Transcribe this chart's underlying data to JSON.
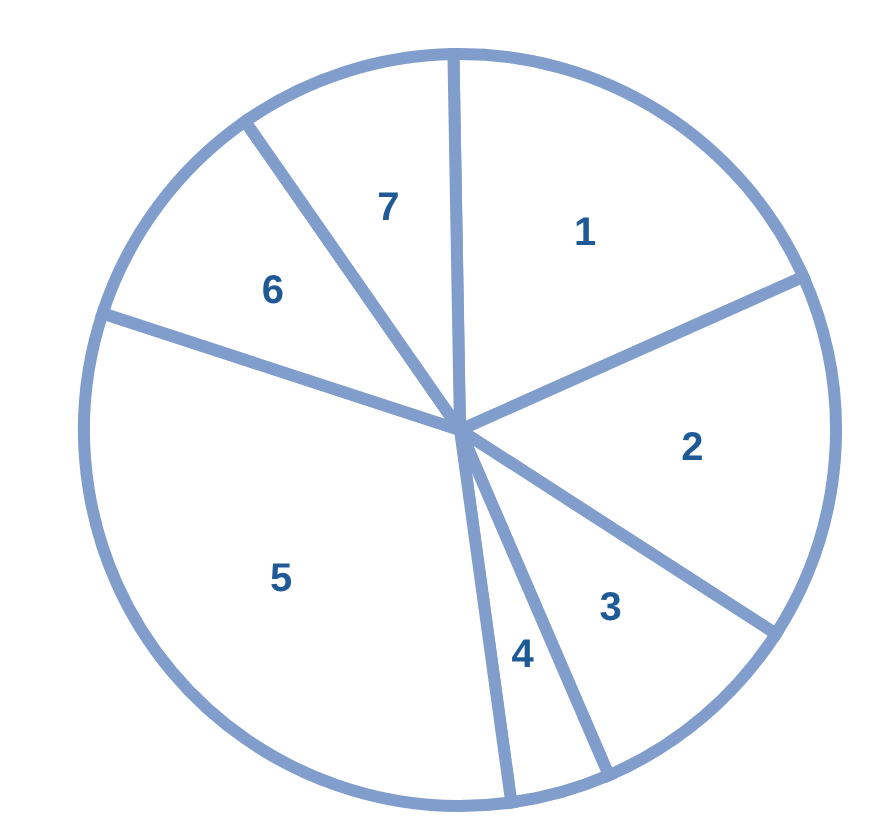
{
  "chart_data": {
    "type": "pie",
    "categories": [
      "1",
      "2",
      "3",
      "4",
      "5",
      "6",
      "7"
    ],
    "values": [
      18.6,
      15.8,
      9.4,
      4.3,
      32.2,
      10.3,
      9.4
    ],
    "colors": [
      "#ffffff",
      "#ffffff",
      "#ffffff",
      "#ffffff",
      "#ffffff",
      "#ffffff",
      "#ffffff"
    ]
  }
}
